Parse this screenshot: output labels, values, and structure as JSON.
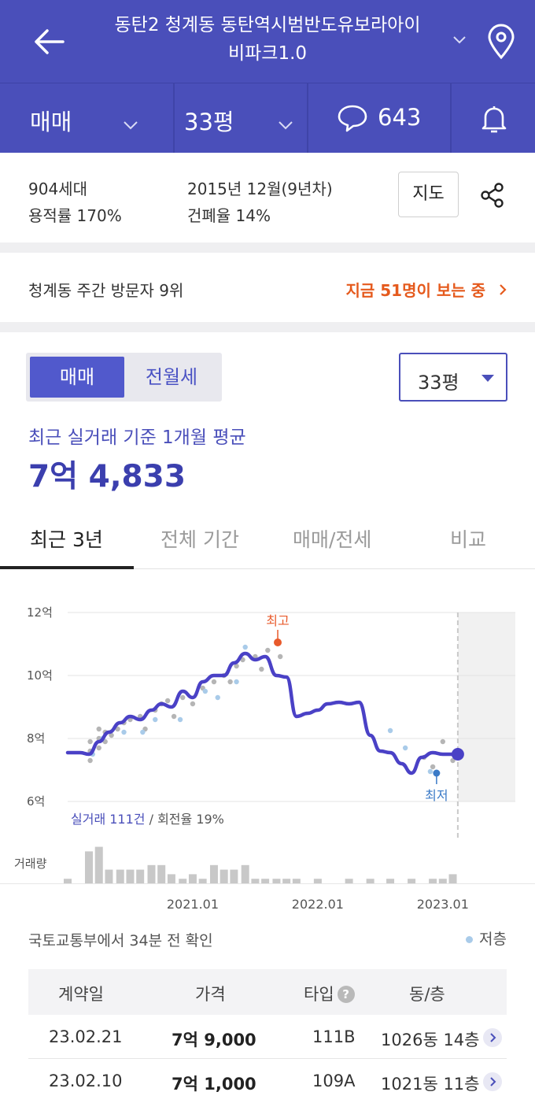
{
  "header": {
    "title_line1": "동탄2 청계동 동탄역시범반도유보라아이",
    "title_line2": "비파크1.0"
  },
  "subbar": {
    "deal_type": "매매",
    "size": "33평",
    "comment_count": "643"
  },
  "info": {
    "households": "904세대",
    "built": "2015년 12월(9년차)",
    "far": "용적률 170%",
    "bcr": "건폐율 14%",
    "map_button": "지도"
  },
  "visitors": {
    "rank_text": "청계동 주간 방문자 9위",
    "viewing_text": "지금 51명이 보는 중"
  },
  "segment": {
    "option_a": "매매",
    "option_b": "전월세",
    "size_select": "33평"
  },
  "average": {
    "label": "최근 실거래 기준 1개월 평균",
    "price": "7억 4,833"
  },
  "tabs": [
    "최근 3년",
    "전체 기간",
    "매매/전세",
    "비교"
  ],
  "chart_data": {
    "type": "line",
    "y_ticks": [
      "12억",
      "10억",
      "8억",
      "6억"
    ],
    "ylim": [
      6,
      12
    ],
    "x_ticks": [
      "2021.01",
      "2022.01",
      "2023.01"
    ],
    "x_tick_years": [
      2021.0,
      2022.0,
      2023.0
    ],
    "xlim": [
      2020.0,
      2023.58
    ],
    "high_label": "최고",
    "low_label": "최저",
    "high_point": {
      "x": 2021.68,
      "y": 11.05
    },
    "low_point": {
      "x": 2022.95,
      "y": 6.9
    },
    "current_point": {
      "x": 2023.12,
      "y": 7.5
    },
    "trades_summary_a": "실거래 111건",
    "trades_summary_b": "/ 회전율 19%",
    "volume_label": "거래량",
    "colors": {
      "line": "#4a41c6",
      "high": "#e85a2b",
      "low": "#3a7ac7",
      "trade": "#b5b5b5",
      "lowfloor": "#a9cbe9"
    },
    "series": [
      {
        "x": [
          2020.0,
          2020.1,
          2020.17,
          2020.25,
          2020.33,
          2020.42,
          2020.5,
          2020.58,
          2020.67,
          2020.75,
          2020.83,
          2020.92,
          2021.0,
          2021.08,
          2021.17,
          2021.25,
          2021.33,
          2021.42,
          2021.5,
          2021.58,
          2021.67,
          2021.75,
          2021.83,
          2021.92,
          2022.0,
          2022.08,
          2022.17,
          2022.25,
          2022.33,
          2022.42,
          2022.5,
          2022.58,
          2022.67,
          2022.75,
          2022.83,
          2022.92,
          2023.0,
          2023.08,
          2023.12
        ],
        "y": [
          7.55,
          7.55,
          7.5,
          7.9,
          8.2,
          8.5,
          8.7,
          8.6,
          8.9,
          9.1,
          9.0,
          9.5,
          9.3,
          9.8,
          10.0,
          10.0,
          10.4,
          10.7,
          10.5,
          10.6,
          10.0,
          9.95,
          8.7,
          8.8,
          8.9,
          9.1,
          9.15,
          9.1,
          9.15,
          8.1,
          7.6,
          7.55,
          7.2,
          6.9,
          7.4,
          7.55,
          7.5,
          7.5,
          7.5
        ]
      }
    ],
    "trades": [
      {
        "x": 2020.18,
        "y": 7.3
      },
      {
        "x": 2020.18,
        "y": 7.6
      },
      {
        "x": 2020.18,
        "y": 7.9
      },
      {
        "x": 2020.25,
        "y": 7.7
      },
      {
        "x": 2020.25,
        "y": 8.0
      },
      {
        "x": 2020.25,
        "y": 8.3
      },
      {
        "x": 2020.3,
        "y": 7.9
      },
      {
        "x": 2020.3,
        "y": 8.2
      },
      {
        "x": 2020.35,
        "y": 8.1
      },
      {
        "x": 2020.4,
        "y": 8.3
      },
      {
        "x": 2020.45,
        "y": 8.5
      },
      {
        "x": 2020.5,
        "y": 8.6
      },
      {
        "x": 2020.58,
        "y": 8.7
      },
      {
        "x": 2020.62,
        "y": 8.3
      },
      {
        "x": 2020.7,
        "y": 8.9
      },
      {
        "x": 2020.75,
        "y": 9.1
      },
      {
        "x": 2020.8,
        "y": 9.2
      },
      {
        "x": 2020.85,
        "y": 8.7
      },
      {
        "x": 2020.92,
        "y": 9.3
      },
      {
        "x": 2021.0,
        "y": 9.1
      },
      {
        "x": 2021.08,
        "y": 9.6
      },
      {
        "x": 2021.17,
        "y": 9.8
      },
      {
        "x": 2021.25,
        "y": 10.0
      },
      {
        "x": 2021.3,
        "y": 9.8
      },
      {
        "x": 2021.35,
        "y": 10.3
      },
      {
        "x": 2021.4,
        "y": 10.5
      },
      {
        "x": 2021.5,
        "y": 10.6
      },
      {
        "x": 2021.55,
        "y": 10.2
      },
      {
        "x": 2021.6,
        "y": 10.8
      },
      {
        "x": 2021.7,
        "y": 10.6
      },
      {
        "x": 2022.85,
        "y": 7.4
      },
      {
        "x": 2022.92,
        "y": 7.1
      },
      {
        "x": 2023.0,
        "y": 7.9
      },
      {
        "x": 2023.08,
        "y": 7.3
      }
    ],
    "lowfloor_trades": [
      {
        "x": 2020.2,
        "y": 7.5
      },
      {
        "x": 2020.28,
        "y": 8.0
      },
      {
        "x": 2020.45,
        "y": 8.2
      },
      {
        "x": 2020.6,
        "y": 8.2
      },
      {
        "x": 2020.7,
        "y": 8.6
      },
      {
        "x": 2020.9,
        "y": 8.6
      },
      {
        "x": 2021.1,
        "y": 9.5
      },
      {
        "x": 2021.2,
        "y": 9.3
      },
      {
        "x": 2021.35,
        "y": 9.8
      },
      {
        "x": 2021.42,
        "y": 10.9
      },
      {
        "x": 2022.58,
        "y": 8.25
      },
      {
        "x": 2022.7,
        "y": 7.7
      },
      {
        "x": 2022.9,
        "y": 6.95
      }
    ],
    "volumes": [
      {
        "x": 2020.0,
        "v": 1
      },
      {
        "x": 2020.17,
        "v": 7
      },
      {
        "x": 2020.25,
        "v": 8
      },
      {
        "x": 2020.33,
        "v": 3
      },
      {
        "x": 2020.42,
        "v": 3
      },
      {
        "x": 2020.5,
        "v": 3
      },
      {
        "x": 2020.58,
        "v": 3
      },
      {
        "x": 2020.67,
        "v": 4
      },
      {
        "x": 2020.75,
        "v": 4
      },
      {
        "x": 2020.83,
        "v": 2
      },
      {
        "x": 2020.92,
        "v": 1
      },
      {
        "x": 2021.0,
        "v": 2
      },
      {
        "x": 2021.08,
        "v": 1
      },
      {
        "x": 2021.17,
        "v": 4
      },
      {
        "x": 2021.25,
        "v": 3
      },
      {
        "x": 2021.33,
        "v": 3
      },
      {
        "x": 2021.42,
        "v": 4
      },
      {
        "x": 2021.5,
        "v": 1
      },
      {
        "x": 2021.58,
        "v": 1
      },
      {
        "x": 2021.67,
        "v": 1
      },
      {
        "x": 2021.75,
        "v": 1
      },
      {
        "x": 2021.83,
        "v": 1
      },
      {
        "x": 2022.0,
        "v": 1
      },
      {
        "x": 2022.25,
        "v": 1
      },
      {
        "x": 2022.42,
        "v": 1
      },
      {
        "x": 2022.58,
        "v": 1
      },
      {
        "x": 2022.75,
        "v": 1
      },
      {
        "x": 2022.92,
        "v": 1
      },
      {
        "x": 2023.0,
        "v": 1
      },
      {
        "x": 2023.08,
        "v": 2
      }
    ]
  },
  "source_text": "국토교통부에서 34분 전 확인",
  "legend_text": "저층",
  "table": {
    "headers": [
      "계약일",
      "가격",
      "타입",
      "동/층"
    ],
    "type_help": "?",
    "rows": [
      {
        "date": "23.02.21",
        "price": "7억 9,000",
        "type": "111B",
        "unit": "1026동 14층"
      },
      {
        "date": "23.02.10",
        "price": "7억 1,000",
        "type": "109A",
        "unit": "1021동 11층"
      }
    ]
  }
}
